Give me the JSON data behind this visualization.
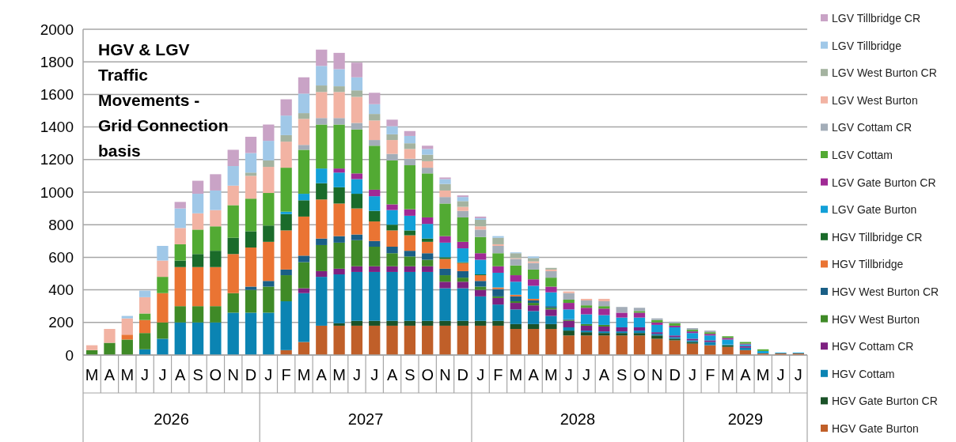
{
  "chart_data": {
    "type": "bar",
    "stacked": true,
    "title": "HGV & LGV Traffic Movements - Grid Connection basis",
    "categories": [
      "M",
      "A",
      "M",
      "J",
      "J",
      "A",
      "S",
      "O",
      "N",
      "D",
      "J",
      "F",
      "M",
      "A",
      "M",
      "J",
      "J",
      "A",
      "S",
      "O",
      "N",
      "D",
      "J",
      "F",
      "M",
      "A",
      "M",
      "J",
      "J",
      "A",
      "S",
      "O",
      "N",
      "D",
      "J",
      "F",
      "M",
      "A",
      "M",
      "J",
      "J"
    ],
    "annotations": [
      "2026",
      "2027",
      "2028",
      "2029"
    ],
    "ylim": [
      0,
      2000
    ],
    "yticks": [
      0,
      200,
      400,
      600,
      800,
      1000,
      1200,
      1400,
      1600,
      1800,
      2000
    ],
    "grid": "y",
    "legend": "right",
    "series": [
      {
        "name": "HGV Gate Burton",
        "color": "#c05f29",
        "values": [
          0,
          0,
          0,
          0,
          0,
          0,
          0,
          0,
          0,
          0,
          0,
          30,
          80,
          180,
          180,
          180,
          180,
          180,
          180,
          180,
          180,
          180,
          180,
          180,
          160,
          160,
          160,
          120,
          120,
          120,
          120,
          120,
          100,
          90,
          70,
          60,
          50,
          30,
          10,
          10,
          10
        ]
      },
      {
        "name": "HGV Gate Burton CR",
        "color": "#1a5228",
        "values": [
          0,
          0,
          0,
          0,
          0,
          0,
          0,
          0,
          0,
          0,
          0,
          0,
          0,
          0,
          15,
          30,
          30,
          30,
          30,
          30,
          30,
          30,
          30,
          30,
          30,
          30,
          30,
          30,
          20,
          15,
          15,
          15,
          20,
          10,
          10,
          0,
          10,
          0,
          0,
          0,
          0
        ]
      },
      {
        "name": "HGV Cottam",
        "color": "#0b84b3",
        "values": [
          0,
          0,
          0,
          35,
          100,
          200,
          200,
          200,
          260,
          260,
          260,
          300,
          300,
          300,
          300,
          300,
          300,
          300,
          300,
          300,
          200,
          200,
          150,
          100,
          90,
          80,
          50,
          20,
          10,
          10,
          10,
          15,
          10,
          10,
          10,
          20,
          5,
          15,
          0,
          0,
          0
        ]
      },
      {
        "name": "HGV Cottam CR",
        "color": "#7e2181",
        "values": [
          0,
          0,
          0,
          0,
          0,
          0,
          0,
          0,
          0,
          0,
          0,
          0,
          30,
          35,
          35,
          35,
          35,
          35,
          35,
          35,
          40,
          40,
          40,
          40,
          40,
          35,
          40,
          40,
          30,
          30,
          25,
          20,
          10,
          10,
          10,
          10,
          0,
          10,
          0,
          0,
          0
        ]
      },
      {
        "name": "HGV West Burton",
        "color": "#3f8a27",
        "values": [
          30,
          75,
          95,
          100,
          100,
          100,
          100,
          100,
          120,
          140,
          160,
          160,
          160,
          160,
          160,
          160,
          120,
          80,
          60,
          40,
          40,
          25,
          20,
          10,
          10,
          15,
          10,
          5,
          10,
          10,
          0,
          0,
          0,
          0,
          0,
          0,
          0,
          0,
          0,
          0,
          0
        ]
      },
      {
        "name": "HGV West Burton CR",
        "color": "#1a5f86",
        "values": [
          0,
          0,
          0,
          0,
          0,
          0,
          0,
          0,
          0,
          20,
          35,
          35,
          40,
          40,
          40,
          35,
          35,
          40,
          35,
          40,
          40,
          40,
          35,
          45,
          30,
          15,
          10,
          5,
          0,
          0,
          0,
          0,
          0,
          0,
          0,
          0,
          0,
          0,
          0,
          0,
          0
        ]
      },
      {
        "name": "HGV Tillbridge",
        "color": "#ea7433",
        "values": [
          0,
          0,
          30,
          80,
          180,
          240,
          240,
          240,
          240,
          240,
          240,
          240,
          240,
          240,
          200,
          160,
          120,
          100,
          95,
          70,
          60,
          50,
          35,
          10,
          10,
          10,
          0,
          0,
          0,
          0,
          0,
          0,
          0,
          0,
          0,
          0,
          0,
          0,
          0,
          0,
          0
        ]
      },
      {
        "name": "HGV Tillbridge CR",
        "color": "#1a6b2a",
        "values": [
          0,
          0,
          0,
          0,
          0,
          40,
          80,
          100,
          100,
          100,
          100,
          100,
          100,
          100,
          100,
          90,
          65,
          35,
          30,
          20,
          10,
          5,
          5,
          0,
          0,
          0,
          0,
          0,
          0,
          0,
          0,
          0,
          0,
          0,
          0,
          0,
          0,
          0,
          0,
          0,
          0
        ]
      },
      {
        "name": "LGV Gate Burton",
        "color": "#12a0d8",
        "values": [
          0,
          0,
          0,
          0,
          0,
          0,
          0,
          0,
          0,
          0,
          0,
          15,
          40,
          90,
          90,
          90,
          90,
          90,
          90,
          90,
          90,
          85,
          90,
          90,
          80,
          80,
          85,
          60,
          60,
          60,
          60,
          60,
          45,
          50,
          35,
          30,
          30,
          10,
          15,
          5,
          5
        ]
      },
      {
        "name": "LGV Gate Burton CR",
        "color": "#a02a95",
        "values": [
          0,
          0,
          0,
          0,
          0,
          0,
          0,
          0,
          0,
          0,
          0,
          0,
          0,
          0,
          25,
          35,
          40,
          35,
          40,
          40,
          40,
          40,
          40,
          40,
          40,
          40,
          35,
          40,
          40,
          40,
          30,
          30,
          15,
          10,
          10,
          10,
          10,
          5,
          0,
          0,
          0
        ]
      },
      {
        "name": "LGV Cottam",
        "color": "#52aa33",
        "values": [
          0,
          0,
          0,
          40,
          100,
          100,
          150,
          150,
          200,
          200,
          200,
          270,
          270,
          270,
          270,
          270,
          270,
          270,
          270,
          270,
          200,
          150,
          100,
          80,
          60,
          60,
          55,
          20,
          15,
          15,
          0,
          10,
          15,
          15,
          10,
          10,
          10,
          10,
          10,
          0,
          0
        ]
      },
      {
        "name": "LGV Cottam CR",
        "color": "#a3adb8",
        "values": [
          0,
          0,
          0,
          0,
          0,
          0,
          0,
          0,
          0,
          0,
          0,
          0,
          30,
          40,
          40,
          40,
          35,
          40,
          40,
          35,
          40,
          40,
          45,
          45,
          40,
          40,
          40,
          40,
          30,
          30,
          35,
          20,
          10,
          10,
          10,
          10,
          0,
          0,
          0,
          0,
          0
        ]
      },
      {
        "name": "LGV West Burton",
        "color": "#f2b3a3",
        "values": [
          30,
          85,
          100,
          100,
          100,
          100,
          100,
          100,
          120,
          140,
          160,
          160,
          160,
          160,
          160,
          160,
          120,
          85,
          60,
          40,
          40,
          25,
          20,
          10,
          5,
          10,
          10,
          10,
          10,
          15,
          0,
          0,
          0,
          0,
          0,
          0,
          0,
          0,
          0,
          0,
          0
        ]
      },
      {
        "name": "LGV West Burton CR",
        "color": "#a4b3a0",
        "values": [
          0,
          0,
          0,
          0,
          0,
          0,
          0,
          0,
          0,
          20,
          40,
          40,
          35,
          40,
          35,
          40,
          40,
          35,
          35,
          40,
          40,
          35,
          40,
          40,
          30,
          20,
          10,
          0,
          0,
          0,
          0,
          0,
          0,
          0,
          0,
          0,
          0,
          0,
          0,
          0,
          0
        ]
      },
      {
        "name": "LGV Tillbridge",
        "color": "#a0c8e8",
        "values": [
          0,
          0,
          15,
          40,
          90,
          120,
          120,
          120,
          120,
          120,
          120,
          120,
          120,
          120,
          105,
          80,
          60,
          50,
          45,
          35,
          30,
          25,
          10,
          10,
          5,
          10,
          0,
          0,
          0,
          0,
          0,
          0,
          0,
          0,
          0,
          0,
          0,
          0,
          0,
          0,
          0
        ]
      },
      {
        "name": "LGV Tillbridge CR",
        "color": "#c9a3c6",
        "values": [
          0,
          0,
          0,
          0,
          0,
          40,
          80,
          100,
          100,
          100,
          100,
          100,
          100,
          100,
          100,
          90,
          70,
          40,
          30,
          20,
          10,
          10,
          10,
          0,
          0,
          0,
          0,
          0,
          0,
          0,
          0,
          0,
          0,
          0,
          0,
          0,
          0,
          0,
          0,
          0,
          0
        ]
      }
    ]
  }
}
